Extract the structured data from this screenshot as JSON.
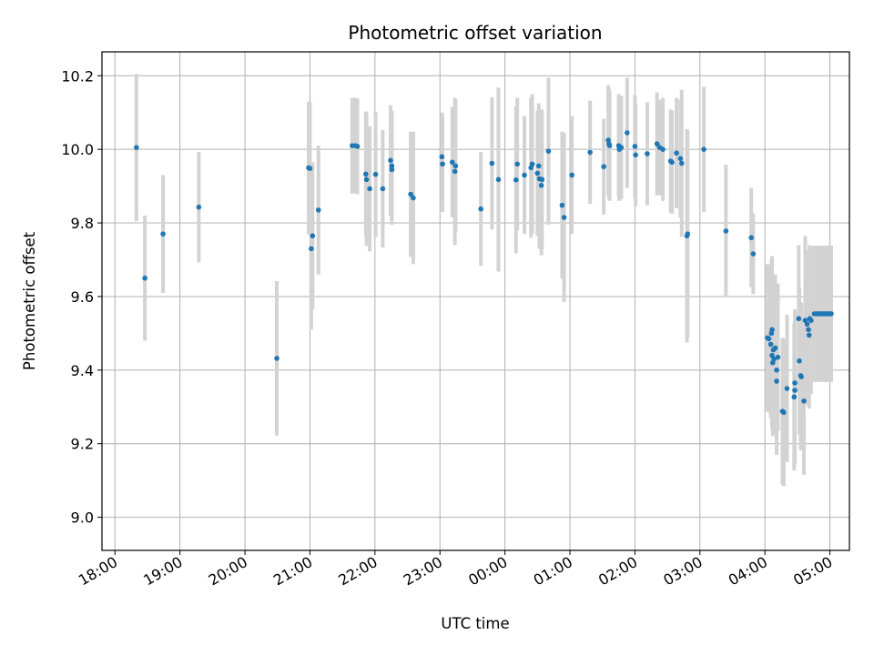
{
  "chart_data": {
    "type": "scatter",
    "title": "Photometric offset variation",
    "xlabel": "UTC time",
    "ylabel": "Photometric offset",
    "x_unit": "hours since 18:00 UTC",
    "xlim": [
      -0.2,
      11.3
    ],
    "ylim": [
      8.91,
      10.265
    ],
    "x_ticks": [
      {
        "value": 0,
        "label": "18:00"
      },
      {
        "value": 1,
        "label": "19:00"
      },
      {
        "value": 2,
        "label": "20:00"
      },
      {
        "value": 3,
        "label": "21:00"
      },
      {
        "value": 4,
        "label": "22:00"
      },
      {
        "value": 5,
        "label": "23:00"
      },
      {
        "value": 6,
        "label": "00:00"
      },
      {
        "value": 7,
        "label": "01:00"
      },
      {
        "value": 8,
        "label": "02:00"
      },
      {
        "value": 9,
        "label": "03:00"
      },
      {
        "value": 10,
        "label": "04:00"
      },
      {
        "value": 11,
        "label": "05:00"
      }
    ],
    "y_ticks": [
      {
        "value": 9.0,
        "label": "9.0"
      },
      {
        "value": 9.2,
        "label": "9.2"
      },
      {
        "value": 9.4,
        "label": "9.4"
      },
      {
        "value": 9.6,
        "label": "9.6"
      },
      {
        "value": 9.8,
        "label": "9.8"
      },
      {
        "value": 10.0,
        "label": "10.0"
      },
      {
        "value": 10.2,
        "label": "10.2"
      }
    ],
    "grid": true,
    "point_color": "#1f77b4",
    "error_color": "#d3d3d3",
    "series": [
      {
        "points": [
          [
            0.33,
            10.005,
            0.2
          ],
          [
            0.46,
            9.65,
            0.17
          ],
          [
            0.74,
            9.77,
            0.16
          ],
          [
            1.29,
            9.843,
            0.15
          ],
          [
            2.49,
            9.432,
            0.21
          ],
          [
            2.98,
            9.95,
            0.18
          ],
          [
            3.0,
            9.948,
            0.18
          ],
          [
            3.02,
            9.73,
            0.22
          ],
          [
            3.04,
            9.765,
            0.2
          ],
          [
            3.13,
            9.835,
            0.175
          ],
          [
            3.65,
            10.01,
            0.13
          ],
          [
            3.7,
            10.01,
            0.13
          ],
          [
            3.73,
            10.008,
            0.13
          ],
          [
            3.86,
            9.933,
            0.17
          ],
          [
            3.87,
            9.918,
            0.18
          ],
          [
            3.92,
            9.893,
            0.17
          ],
          [
            4.01,
            9.932,
            0.17
          ],
          [
            4.12,
            9.893,
            0.16
          ],
          [
            4.24,
            9.97,
            0.15
          ],
          [
            4.26,
            9.955,
            0.15
          ],
          [
            4.26,
            9.945,
            0.15
          ],
          [
            4.55,
            9.878,
            0.17
          ],
          [
            4.59,
            9.868,
            0.18
          ],
          [
            5.03,
            9.98,
            0.12
          ],
          [
            5.04,
            9.96,
            0.13
          ],
          [
            5.19,
            9.965,
            0.15
          ],
          [
            5.23,
            9.94,
            0.2
          ],
          [
            5.24,
            9.955,
            0.18
          ],
          [
            5.63,
            9.838,
            0.155
          ],
          [
            5.8,
            9.962,
            0.18
          ],
          [
            5.9,
            9.918,
            0.25
          ],
          [
            6.17,
            9.917,
            0.2
          ],
          [
            6.19,
            9.96,
            0.18
          ],
          [
            6.3,
            9.93,
            0.16
          ],
          [
            6.4,
            9.95,
            0.19
          ],
          [
            6.42,
            9.96,
            0.19
          ],
          [
            6.5,
            9.935,
            0.17
          ],
          [
            6.52,
            9.955,
            0.17
          ],
          [
            6.53,
            9.92,
            0.19
          ],
          [
            6.56,
            9.902,
            0.19
          ],
          [
            6.57,
            9.918,
            0.19
          ],
          [
            6.67,
            9.995,
            0.2
          ],
          [
            6.88,
            9.848,
            0.2
          ],
          [
            6.91,
            9.815,
            0.23
          ],
          [
            7.03,
            9.93,
            0.16
          ],
          [
            7.31,
            9.992,
            0.14
          ],
          [
            7.52,
            9.953,
            0.13
          ],
          [
            7.59,
            10.025,
            0.15
          ],
          [
            7.6,
            10.015,
            0.15
          ],
          [
            7.61,
            10.01,
            0.15
          ],
          [
            7.75,
            10.01,
            0.14
          ],
          [
            7.76,
            10.0,
            0.14
          ],
          [
            7.79,
            10.005,
            0.14
          ],
          [
            7.88,
            10.045,
            0.15
          ],
          [
            8.0,
            10.008,
            0.14
          ],
          [
            8.01,
            9.985,
            0.14
          ],
          [
            8.19,
            9.988,
            0.14
          ],
          [
            8.34,
            10.015,
            0.14
          ],
          [
            8.38,
            10.005,
            0.13
          ],
          [
            8.43,
            10.0,
            0.14
          ],
          [
            8.55,
            9.968,
            0.14
          ],
          [
            8.57,
            9.965,
            0.14
          ],
          [
            8.64,
            9.99,
            0.15
          ],
          [
            8.7,
            9.975,
            0.16
          ],
          [
            8.72,
            9.962,
            0.2
          ],
          [
            8.8,
            9.765,
            0.29
          ],
          [
            8.81,
            9.77,
            0.28
          ],
          [
            9.06,
            10.0,
            0.17
          ],
          [
            9.4,
            9.778,
            0.18
          ],
          [
            9.79,
            9.76,
            0.135
          ],
          [
            9.82,
            9.716,
            0.11
          ],
          [
            10.04,
            9.488,
            0.2
          ],
          [
            10.06,
            9.485,
            0.2
          ],
          [
            10.09,
            9.47,
            0.2
          ],
          [
            10.1,
            9.5,
            0.2
          ],
          [
            10.11,
            9.51,
            0.2
          ],
          [
            10.11,
            9.44,
            0.2
          ],
          [
            10.12,
            9.42,
            0.2
          ],
          [
            10.13,
            9.455,
            0.2
          ],
          [
            10.14,
            9.43,
            0.2
          ],
          [
            10.16,
            9.46,
            0.2
          ],
          [
            10.18,
            9.4,
            0.23
          ],
          [
            10.18,
            9.37,
            0.2
          ],
          [
            10.2,
            9.435,
            0.2
          ],
          [
            10.27,
            9.288,
            0.2
          ],
          [
            10.29,
            9.285,
            0.2
          ],
          [
            10.34,
            9.35,
            0.2
          ],
          [
            10.45,
            9.327,
            0.2
          ],
          [
            10.46,
            9.345,
            0.2
          ],
          [
            10.46,
            9.365,
            0.2
          ],
          [
            10.52,
            9.54,
            0.2
          ],
          [
            10.53,
            9.425,
            0.2
          ],
          [
            10.55,
            9.385,
            0.2
          ],
          [
            10.56,
            9.382,
            0.2
          ],
          [
            10.6,
            9.316,
            0.2
          ],
          [
            10.62,
            9.535,
            0.23
          ],
          [
            10.65,
            9.525,
            0.2
          ],
          [
            10.67,
            9.51,
            0.2
          ],
          [
            10.68,
            9.495,
            0.2
          ],
          [
            10.69,
            9.54,
            0.2
          ],
          [
            10.71,
            9.535,
            0.2
          ],
          [
            10.76,
            9.553,
            0.185
          ],
          [
            10.8,
            9.553,
            0.185
          ],
          [
            10.83,
            9.553,
            0.185
          ],
          [
            10.86,
            9.553,
            0.185
          ],
          [
            10.89,
            9.553,
            0.185
          ],
          [
            10.91,
            9.553,
            0.185
          ],
          [
            10.94,
            9.553,
            0.185
          ],
          [
            10.97,
            9.553,
            0.185
          ],
          [
            10.99,
            9.553,
            0.185
          ],
          [
            11.02,
            9.553,
            0.185
          ]
        ]
      }
    ]
  }
}
